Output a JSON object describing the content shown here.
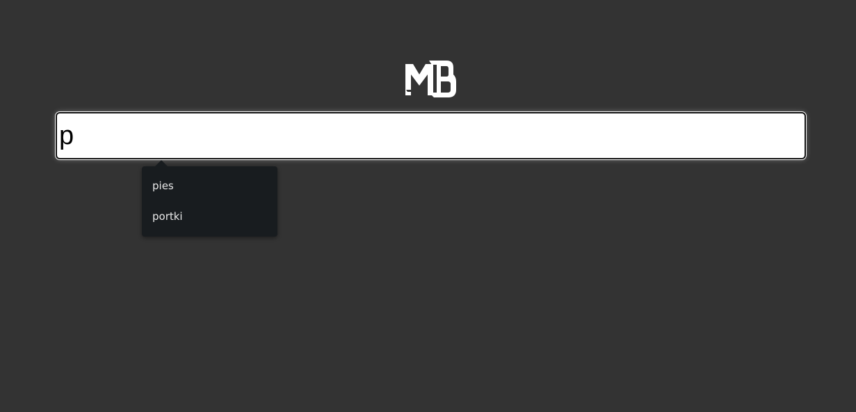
{
  "logo": {
    "icon": "mb-logo",
    "text": "MB"
  },
  "search": {
    "value": "p"
  },
  "suggestions": [
    "pies",
    "portki"
  ],
  "colors": {
    "background": "#333333",
    "dropdown_bg": "#181c1f",
    "input_bg": "#ffffff"
  }
}
